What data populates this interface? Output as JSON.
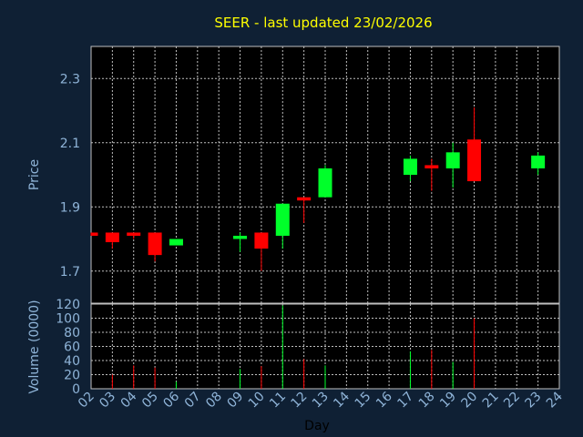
{
  "chart_data": {
    "type": "candlestick",
    "title": "SEER - last updated 23/02/2026",
    "xlabel": "Day",
    "days": [
      "02",
      "03",
      "04",
      "05",
      "06",
      "07",
      "08",
      "09",
      "10",
      "11",
      "12",
      "13",
      "14",
      "15",
      "16",
      "17",
      "18",
      "19",
      "20",
      "21",
      "22",
      "23",
      "24"
    ],
    "price": {
      "ylabel": "Price",
      "ylim": [
        1.6,
        2.4
      ],
      "ticks": [
        "1.7",
        "1.9",
        "2.1",
        "2.3"
      ],
      "tick_values": [
        1.7,
        1.9,
        2.1,
        2.3
      ],
      "grid": true
    },
    "volume": {
      "ylabel": "Volume (0000)",
      "ylim": [
        0,
        120
      ],
      "ticks": [
        "0",
        "20",
        "40",
        "60",
        "80",
        "100",
        "120"
      ],
      "tick_values": [
        0,
        20,
        40,
        60,
        80,
        100,
        120
      ],
      "grid": true
    },
    "candles": [
      {
        "day": "02",
        "open": 1.82,
        "high": 1.82,
        "low": 1.81,
        "close": 1.81,
        "volume": 0
      },
      {
        "day": "03",
        "open": 1.82,
        "high": 1.82,
        "low": 1.77,
        "close": 1.79,
        "volume": 20
      },
      {
        "day": "04",
        "open": 1.82,
        "high": 1.82,
        "low": 1.8,
        "close": 1.81,
        "volume": 33
      },
      {
        "day": "05",
        "open": 1.82,
        "high": 1.82,
        "low": 1.73,
        "close": 1.75,
        "volume": 30
      },
      {
        "day": "06",
        "open": 1.78,
        "high": 1.8,
        "low": 1.78,
        "close": 1.8,
        "volume": 10
      },
      {
        "day": "09",
        "open": 1.8,
        "high": 1.82,
        "low": 1.76,
        "close": 1.81,
        "volume": 28
      },
      {
        "day": "10",
        "open": 1.82,
        "high": 1.82,
        "low": 1.7,
        "close": 1.77,
        "volume": 32
      },
      {
        "day": "11",
        "open": 1.81,
        "high": 1.91,
        "low": 1.77,
        "close": 1.91,
        "volume": 118
      },
      {
        "day": "12",
        "open": 1.93,
        "high": 1.93,
        "low": 1.85,
        "close": 1.92,
        "volume": 42
      },
      {
        "day": "13",
        "open": 1.93,
        "high": 2.03,
        "low": 1.93,
        "close": 2.02,
        "volume": 33
      },
      {
        "day": "17",
        "open": 2.0,
        "high": 2.06,
        "low": 1.98,
        "close": 2.05,
        "volume": 53
      },
      {
        "day": "18",
        "open": 2.03,
        "high": 2.05,
        "low": 1.95,
        "close": 2.02,
        "volume": 55
      },
      {
        "day": "19",
        "open": 2.02,
        "high": 2.1,
        "low": 1.96,
        "close": 2.07,
        "volume": 38
      },
      {
        "day": "20",
        "open": 2.11,
        "high": 2.21,
        "low": 1.98,
        "close": 1.98,
        "volume": 100
      },
      {
        "day": "23",
        "open": 2.02,
        "high": 2.07,
        "low": 2.0,
        "close": 2.06,
        "volume": 0
      }
    ],
    "colors": {
      "background": "#0f2034",
      "plot": "#000000",
      "grid": "#c0c0c0",
      "up": "#00ff2a",
      "down": "#ff0000",
      "title": "#ffff00",
      "text": "#8fb4d8"
    }
  }
}
